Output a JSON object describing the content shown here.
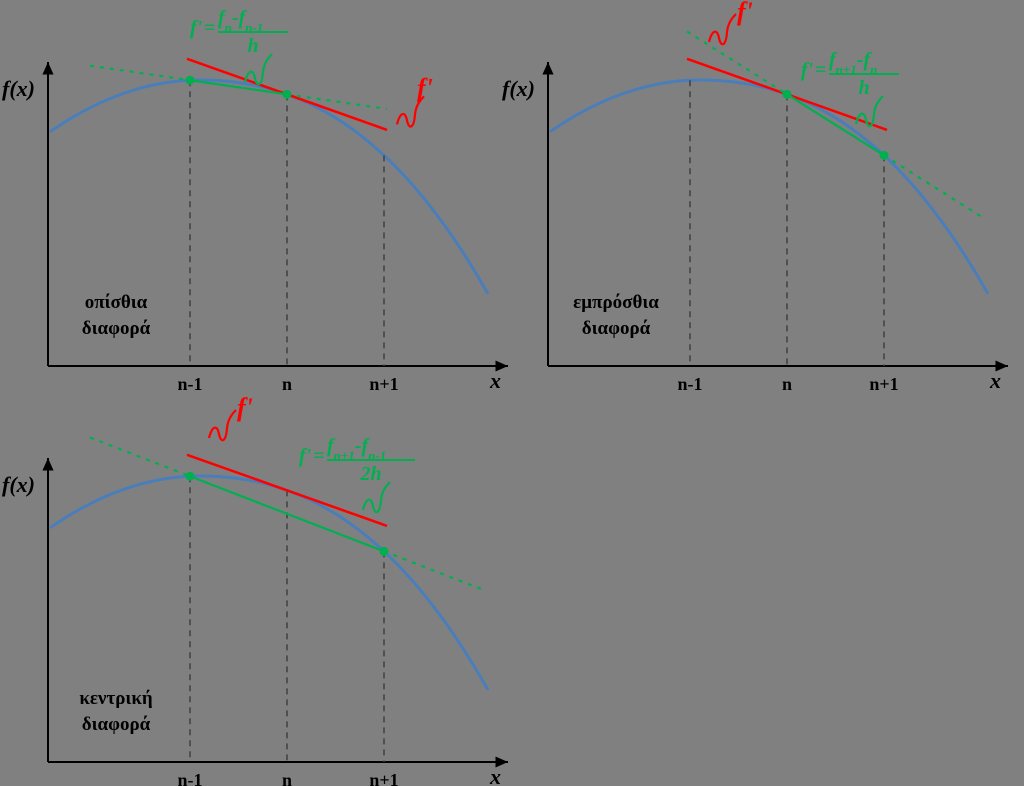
{
  "colors": {
    "background": "#808080",
    "curve": "#4a7ebb",
    "tangent": "#ff0000",
    "secant": "#00b050",
    "axis": "#000000",
    "guide": "#404040"
  },
  "panels": [
    {
      "id": "backward",
      "axis_y": "f(x)",
      "axis_x": "x",
      "ticks": [
        "n-1",
        "n",
        "n+1"
      ],
      "method_lines": [
        "οπίσθια",
        "διαφορά"
      ],
      "tangent_label": "f'",
      "formula": {
        "lhs": "f'",
        "num_a": "f",
        "sub_a": "n",
        "op": "-",
        "num_b": "f",
        "sub_b": "n-1",
        "den": "h"
      }
    },
    {
      "id": "forward",
      "axis_y": "f(x)",
      "axis_x": "x",
      "ticks": [
        "n-1",
        "n",
        "n+1"
      ],
      "method_lines": [
        "εμπρόσθια",
        "διαφορά"
      ],
      "tangent_label": "f'",
      "formula": {
        "lhs": "f'",
        "num_a": "f",
        "sub_a": "n+1",
        "op": "-",
        "num_b": "f",
        "sub_b": "n",
        "den": "h"
      }
    },
    {
      "id": "central",
      "axis_y": "f(x)",
      "axis_x": "x",
      "ticks": [
        "n-1",
        "n",
        "n+1"
      ],
      "method_lines": [
        "κεντρική",
        "διαφορά"
      ],
      "tangent_label": "f'",
      "formula": {
        "lhs": "f'",
        "num_a": "f",
        "sub_a": "n+1",
        "op": "-",
        "num_b": "f",
        "sub_b": "n-1",
        "den": "2h"
      }
    }
  ]
}
